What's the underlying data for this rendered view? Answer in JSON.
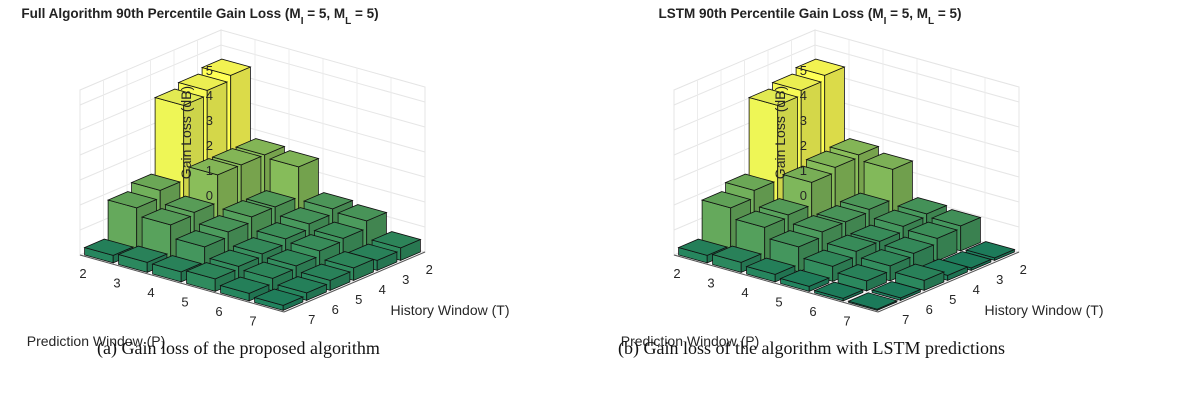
{
  "chart_data": [
    {
      "type": "bar3d",
      "title_prefix": "Full Algorithm 90th Percentile Gain Loss (M",
      "title_sub1": "I",
      "title_mid": " = 5, M",
      "title_sub2": "L",
      "title_suffix": " = 5)",
      "xlabel": "History Window (T)",
      "ylabel": "Prediction Window (P)",
      "zlabel": "Gain Loss (dB)",
      "history_windows": [
        "2",
        "3",
        "4",
        "5",
        "6",
        "7"
      ],
      "prediction_windows": [
        "2",
        "3",
        "4",
        "5",
        "6",
        "7"
      ],
      "zticks": [
        "0",
        "1",
        "2",
        "3",
        "4",
        "5"
      ],
      "zlim": [
        0,
        5.5
      ],
      "colormap": [
        "#1a7f5f",
        "#ffff55"
      ],
      "values": [
        [
          5.5,
          5.3,
          5.1,
          2.1,
          1.8,
          0.3
        ],
        [
          2.7,
          2.7,
          2.7,
          1.6,
          1.5,
          0.4
        ],
        [
          2.6,
          1.4,
          1.4,
          1.2,
          1.0,
          0.4
        ],
        [
          1.3,
          1.1,
          0.9,
          0.7,
          0.6,
          0.5
        ],
        [
          1.2,
          0.9,
          0.8,
          0.6,
          0.5,
          0.3
        ],
        [
          0.5,
          0.4,
          0.5,
          0.4,
          0.3,
          0.2
        ]
      ],
      "caption": "(a) Gain loss of the proposed algorithm"
    },
    {
      "type": "bar3d",
      "title_prefix": "LSTM 90th Percentile Gain Loss (M",
      "title_sub1": "I",
      "title_mid": " = 5, M",
      "title_sub2": "L",
      "title_suffix": " = 5)",
      "xlabel": "History Window (T)",
      "ylabel": "Prediction Window (P)",
      "zlabel": "Gain Loss (dB)",
      "history_windows": [
        "2",
        "3",
        "4",
        "5",
        "6",
        "7"
      ],
      "prediction_windows": [
        "2",
        "3",
        "4",
        "5",
        "6",
        "7"
      ],
      "zticks": [
        "0",
        "1",
        "2",
        "3",
        "4",
        "5"
      ],
      "zlim": [
        0,
        5.5
      ],
      "colormap": [
        "#1a7f5f",
        "#ffff55"
      ],
      "values": [
        [
          5.5,
          5.3,
          5.1,
          2.1,
          1.8,
          0.3
        ],
        [
          2.7,
          2.6,
          2.4,
          1.5,
          1.4,
          0.4
        ],
        [
          2.5,
          1.3,
          1.2,
          1.2,
          1.0,
          0.3
        ],
        [
          1.1,
          1.0,
          0.8,
          0.8,
          0.6,
          0.2
        ],
        [
          1.0,
          0.9,
          0.7,
          0.6,
          0.4,
          0.1
        ],
        [
          0.1,
          0.1,
          0.2,
          0.4,
          0.1,
          0.05
        ]
      ],
      "caption": "(b) Gain loss of the algorithm with LSTM predictions"
    }
  ]
}
